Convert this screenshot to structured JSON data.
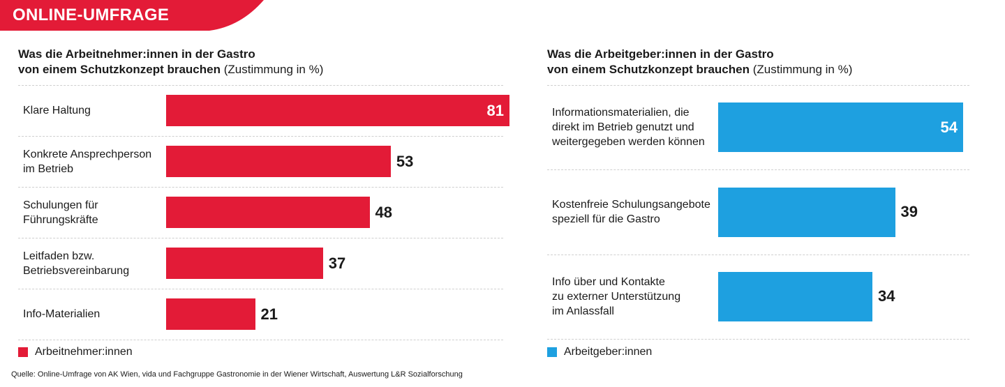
{
  "banner": {
    "label": "ONLINE-UMFRAGE",
    "color": "#e31b37"
  },
  "source": "Quelle: Online-Umfrage von AK Wien, vida und Fachgruppe Gastronomie in der Wiener Wirtschaft, Auswertung L&R Sozialforschung",
  "colors": {
    "employees": "#e31b37",
    "employers": "#1ea0e0"
  },
  "chart_data": [
    {
      "type": "bar",
      "orientation": "horizontal",
      "title_bold_line1": "Was die Arbeitnehmer:innen in der Gastro",
      "title_bold_line2": "von einem Schutzkonzept brauchen",
      "title_suffix": " (Zustimmung in %)",
      "categories": [
        [
          "Klare Haltung"
        ],
        [
          "Konkrete Ansprechperson",
          "im Betrieb"
        ],
        [
          "Schulungen für",
          "Führungskräfte"
        ],
        [
          "Leitfaden bzw.",
          "Betriebsvereinbarung"
        ],
        [
          "Info-Materialien"
        ]
      ],
      "series": [
        {
          "name": "Arbeitnehmer:innen",
          "values": [
            81,
            53,
            48,
            37,
            21
          ],
          "color": "#e31b37"
        }
      ],
      "value_labels_inside_max": true,
      "grid": false,
      "legend": "bottom-left"
    },
    {
      "type": "bar",
      "orientation": "horizontal",
      "title_bold_line1": "Was die Arbeitgeber:innen in der Gastro",
      "title_bold_line2": "von einem Schutzkonzept brauchen",
      "title_suffix": " (Zustimmung in %)",
      "categories": [
        [
          "Informationsmaterialien, die",
          "direkt im Betrieb genutzt und",
          "weitergegeben werden können"
        ],
        [
          "Kostenfreie Schulungsangebote",
          "speziell für die Gastro"
        ],
        [
          "Info über und Kontakte",
          "zu externer Unterstützung",
          "im Anlassfall"
        ]
      ],
      "series": [
        {
          "name": "Arbeitgeber:innen",
          "values": [
            54,
            39,
            34
          ],
          "color": "#1ea0e0"
        }
      ],
      "value_labels_inside_max": true,
      "grid": false,
      "legend": "bottom-left"
    }
  ]
}
